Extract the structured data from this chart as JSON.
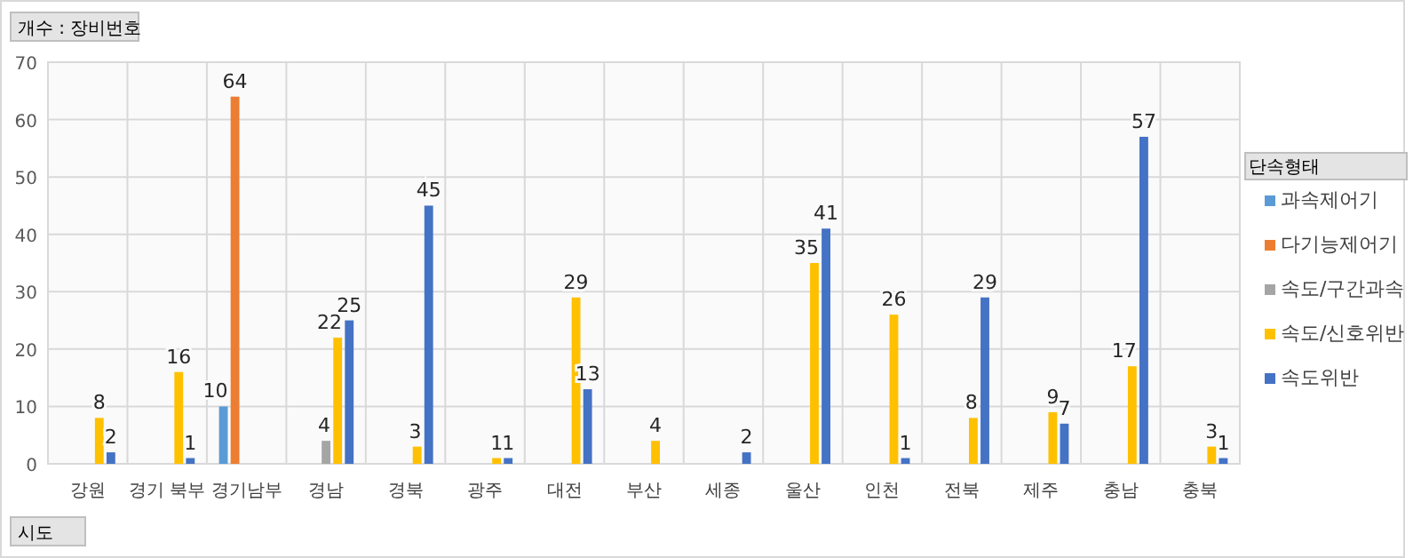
{
  "chart_data": {
    "type": "bar",
    "annotations": [
      "개수 : 장비번호"
    ],
    "xlabel": "시도",
    "legend_title": "단속형태",
    "legend": "right",
    "grid": true,
    "data_labels": true,
    "categories": [
      "강원",
      "경기 북부",
      "경기남부",
      "경남",
      "경북",
      "광주",
      "대전",
      "부산",
      "세종",
      "울산",
      "인천",
      "전북",
      "제주",
      "충남",
      "충북"
    ],
    "ylim": [
      0,
      70
    ],
    "yticks": [
      0,
      10,
      20,
      30,
      40,
      50,
      60,
      70
    ],
    "series": [
      {
        "name": "과속제어기",
        "color": "#5b9bd5",
        "values": [
          null,
          null,
          10,
          null,
          null,
          null,
          null,
          null,
          null,
          null,
          null,
          null,
          null,
          null,
          null
        ]
      },
      {
        "name": "다기능제어기",
        "color": "#ed7d31",
        "values": [
          null,
          null,
          64,
          null,
          null,
          null,
          null,
          null,
          null,
          null,
          null,
          null,
          null,
          null,
          null
        ]
      },
      {
        "name": "속도/구간과속",
        "color": "#a5a5a5",
        "values": [
          null,
          null,
          null,
          4,
          null,
          null,
          null,
          null,
          null,
          null,
          null,
          null,
          null,
          null,
          null
        ]
      },
      {
        "name": "속도/신호위반",
        "color": "#ffc000",
        "values": [
          8,
          16,
          null,
          22,
          3,
          1,
          29,
          4,
          null,
          35,
          26,
          8,
          9,
          17,
          3
        ]
      },
      {
        "name": "속도위반",
        "color": "#4472c4",
        "values": [
          2,
          1,
          null,
          25,
          45,
          1,
          13,
          null,
          2,
          41,
          1,
          29,
          7,
          57,
          1
        ]
      }
    ]
  }
}
